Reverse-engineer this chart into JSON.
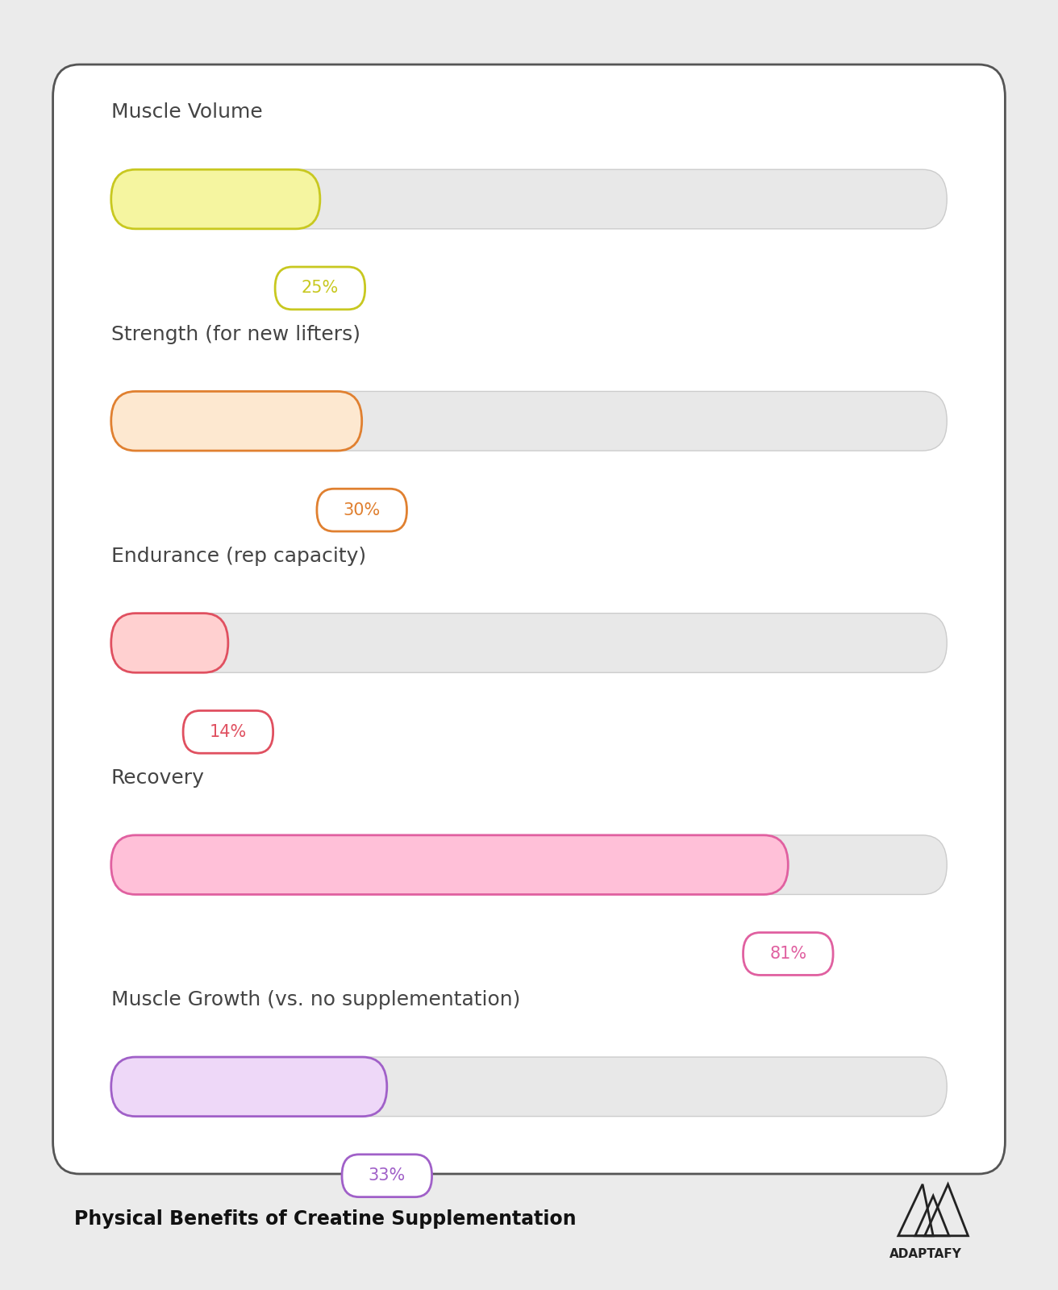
{
  "categories": [
    "Muscle Volume",
    "Strength (for new lifters)",
    "Endurance (rep capacity)",
    "Recovery",
    "Muscle Growth (vs. no supplementation)"
  ],
  "values": [
    25,
    30,
    14,
    81,
    33
  ],
  "max_value": 100,
  "bar_fill_colors": [
    "#f5f5a0",
    "#fde8d0",
    "#ffd0d0",
    "#ffc0d8",
    "#eed8f8"
  ],
  "bar_edge_colors": [
    "#c8c820",
    "#e08030",
    "#e05060",
    "#e060a0",
    "#a060c8"
  ],
  "label_colors": [
    "#c8c820",
    "#e08030",
    "#e05060",
    "#e060a0",
    "#a060c8"
  ],
  "bg_track_color": "#e8e8e8",
  "background_color": "#ebebeb",
  "card_color": "#ffffff",
  "title_text": "Physical Benefits of Creatine Supplementation"
}
